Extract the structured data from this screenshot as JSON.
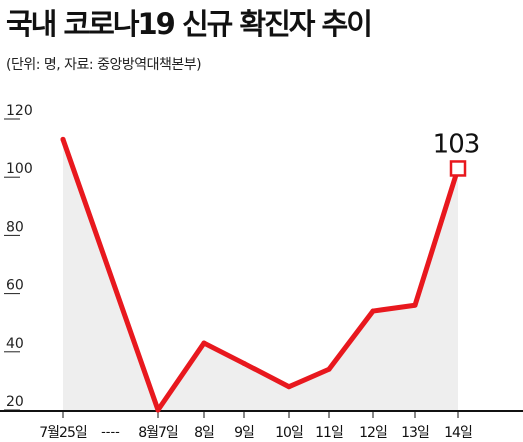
{
  "title": "국내 코로나19 신규 확진자 추이",
  "subtitle": "(단위: 명, 자료: 중앙방역대책본부)",
  "colors": {
    "line": "#e8181e",
    "area": "#eeeeee",
    "axis": "#111111",
    "highlight_marker": "#e8181e"
  },
  "chart_data": {
    "type": "line",
    "title": "국내 코로나19 신규 확진자 추이",
    "unit": "명",
    "source": "중앙방역대책본부",
    "categories": [
      "7월25일",
      "8월7일",
      "8일",
      "9일",
      "10일",
      "11일",
      "12일",
      "13일",
      "14일"
    ],
    "series": [
      {
        "values": [
          113,
          20,
          43,
          36,
          28,
          34,
          54,
          56,
          103
        ]
      }
    ],
    "ylim": [
      20,
      120
    ],
    "yticks": [
      20,
      40,
      60,
      80,
      100,
      120
    ],
    "axis_break_label": "----",
    "highlight": {
      "index": 8,
      "label": "103"
    },
    "grid": false
  }
}
